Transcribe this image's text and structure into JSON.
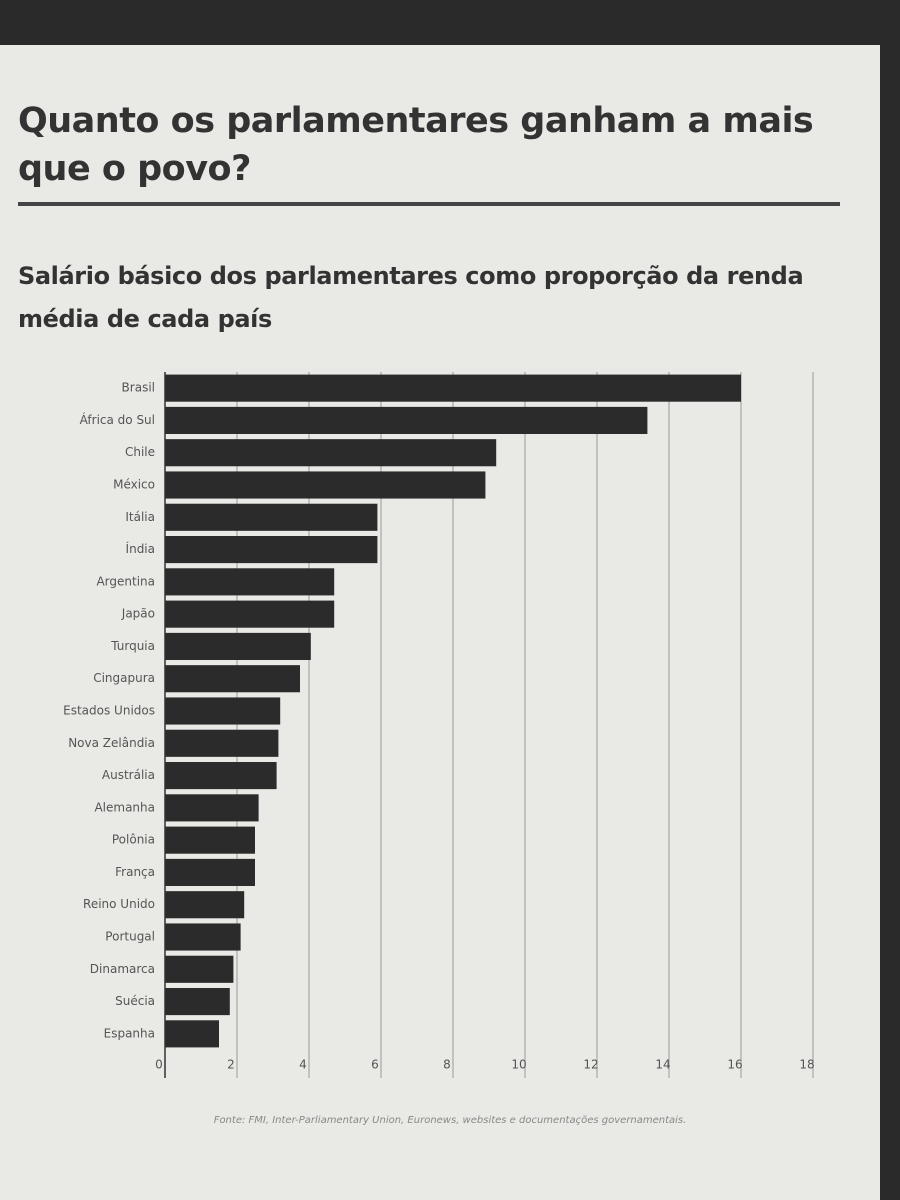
{
  "chart_data": {
    "type": "barh",
    "title": "Quanto os parlamentares ganham a mais que o povo?",
    "subtitle": "Salário básico dos parlamentares como proporção da renda média de cada país",
    "source": "Fonte: FMI, Inter-Parliamentary Union, Euronews, websites e documentações governamentais.",
    "categories": [
      "Brasil",
      "África do Sul",
      "Chile",
      "México",
      "Itália",
      "Índia",
      "Argentina",
      "Japão",
      "Turquia",
      "Cingapura",
      "Estados Unidos",
      "Nova Zelândia",
      "Austrália",
      "Alemanha",
      "Polônia",
      "França",
      "Reino Unido",
      "Portugal",
      "Dinamarca",
      "Suécia",
      "Espanha"
    ],
    "values": [
      16.0,
      13.4,
      9.2,
      8.9,
      5.9,
      5.9,
      4.7,
      4.7,
      4.05,
      3.75,
      3.2,
      3.15,
      3.1,
      2.6,
      2.5,
      2.5,
      2.2,
      2.1,
      1.9,
      1.8,
      1.5
    ],
    "color": "#2b2b2b",
    "xlim": [
      0,
      18
    ],
    "xticks": [
      0,
      2,
      4,
      6,
      8,
      10,
      12,
      14,
      16,
      18
    ],
    "grid": true
  }
}
